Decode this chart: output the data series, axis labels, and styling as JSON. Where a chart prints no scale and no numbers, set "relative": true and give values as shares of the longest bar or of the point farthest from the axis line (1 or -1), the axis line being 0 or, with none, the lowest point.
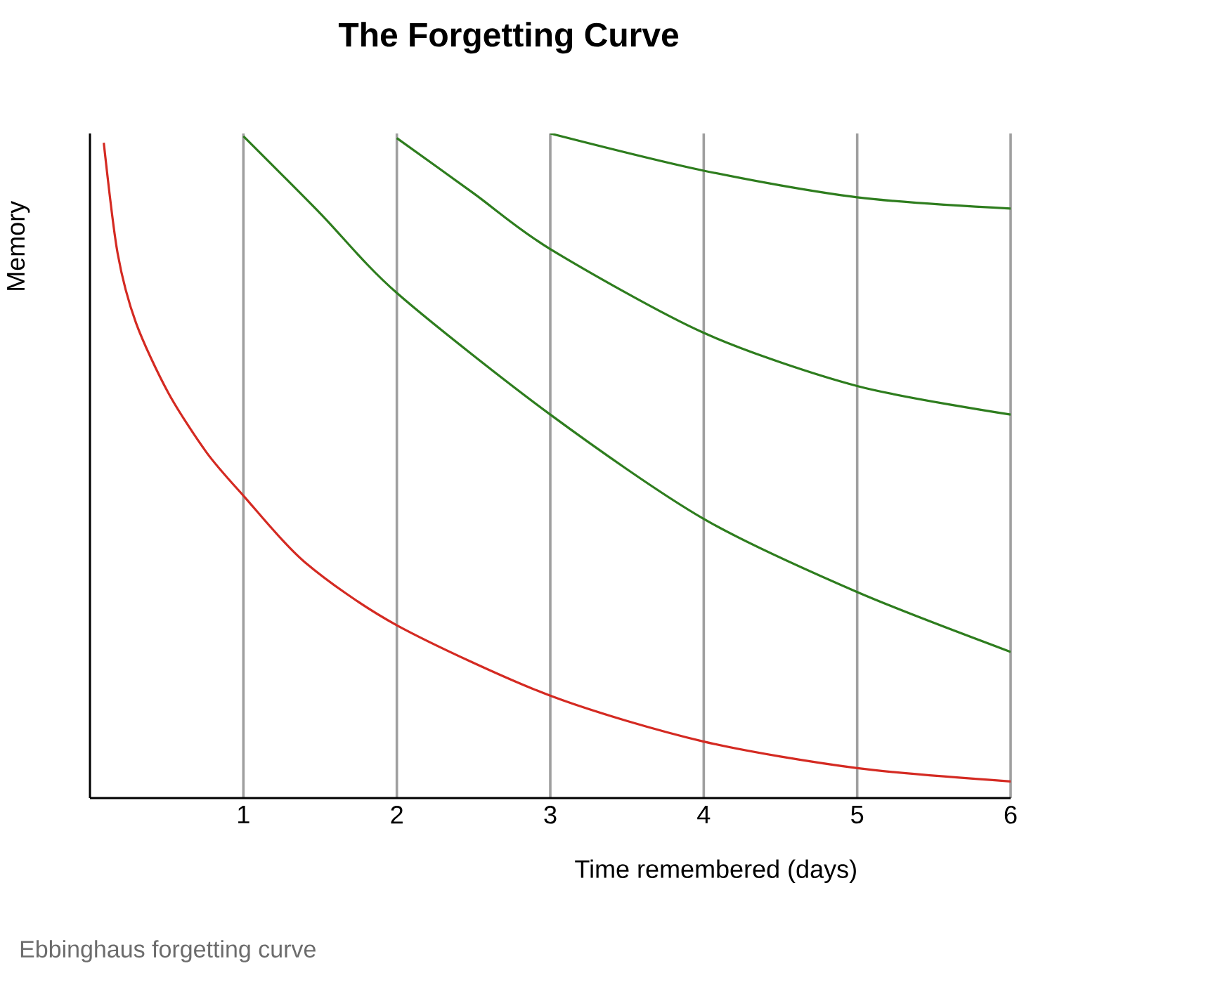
{
  "chart_data": {
    "type": "line",
    "title": "The Forgetting Curve",
    "xlabel": "Time remembered (days)",
    "ylabel": "Memory",
    "relative": true,
    "grid": "x",
    "xlim": [
      0,
      6
    ],
    "xticks": [
      1,
      2,
      3,
      4,
      5,
      6
    ],
    "annotations": [
      "Ebbinghaus forgetting curve"
    ],
    "series": [
      {
        "color": "#d42a22",
        "x": [
          0.09,
          0.18,
          0.3,
          0.51,
          0.76,
          1,
          1.4,
          2,
          3,
          4,
          5,
          6
        ],
        "values": [
          0.986,
          0.82,
          0.715,
          0.61,
          0.52,
          0.455,
          0.355,
          0.26,
          0.154,
          0.085,
          0.045,
          0.025
        ]
      },
      {
        "color": "#2e7d1e",
        "x": [
          1,
          1.5,
          2,
          3,
          4,
          5,
          6
        ],
        "values": [
          0.996,
          0.88,
          0.76,
          0.577,
          0.42,
          0.31,
          0.22
        ]
      },
      {
        "color": "#2e7d1e",
        "x": [
          2,
          2.5,
          3,
          4,
          5,
          6
        ],
        "values": [
          0.993,
          0.91,
          0.826,
          0.7,
          0.62,
          0.577
        ]
      },
      {
        "color": "#2e7d1e",
        "x": [
          3,
          4,
          5,
          6
        ],
        "values": [
          1.0,
          0.944,
          0.904,
          0.887
        ]
      }
    ]
  }
}
